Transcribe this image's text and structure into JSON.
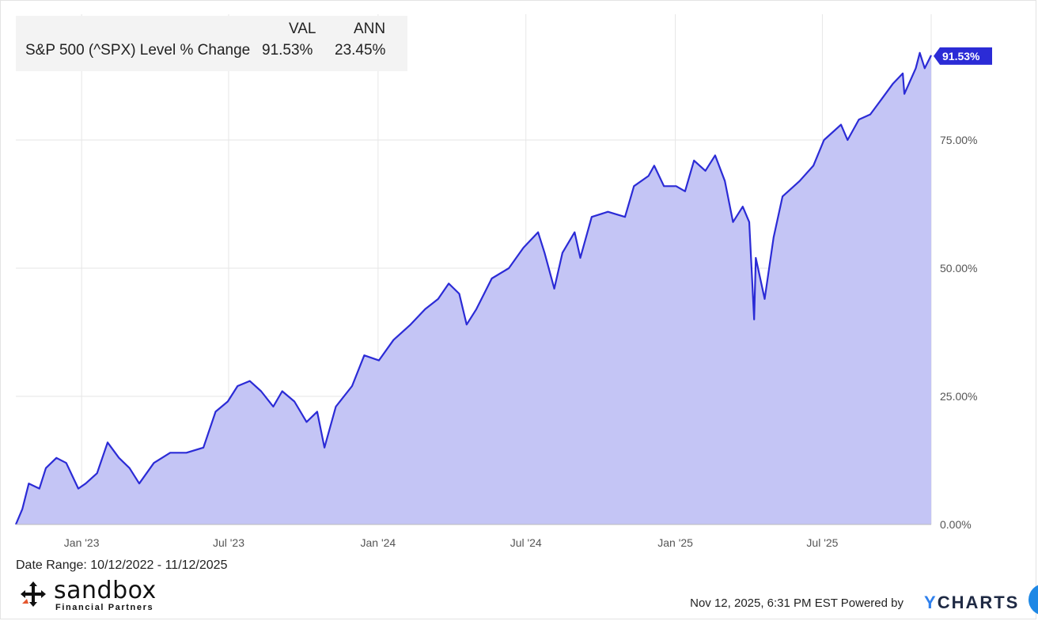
{
  "legend": {
    "col_val": "VAL",
    "col_ann": "ANN",
    "series_label": "S&P 500 (^SPX) Level % Change",
    "val": "91.53%",
    "ann": "23.45%"
  },
  "date_range": "Date Range: 10/12/2022 - 11/12/2025",
  "logo": {
    "word": "sandbox",
    "sub": "Financial Partners"
  },
  "footer": {
    "timestamp": "Nov 12, 2025, 6:31 PM EST Powered by",
    "brand_y": "Y",
    "brand_rest": "CHARTS"
  },
  "colors": {
    "line": "#2b2bd6",
    "fill": "#c4c5f5",
    "grid": "#e6e6e6",
    "badge": "#2b2bd6"
  },
  "chart_data": {
    "type": "area",
    "series": [
      {
        "name": "S&P 500 (^SPX) Level % Change"
      }
    ],
    "x_range": [
      "2022-10-12",
      "2025-11-12"
    ],
    "ylim": [
      0,
      100
    ],
    "y_ticks": [
      "0.00%",
      "25.00%",
      "50.00%",
      "75.00%"
    ],
    "x_ticks": [
      "Jan '23",
      "Jul '23",
      "Jan '24",
      "Jul '24",
      "Jan '25",
      "Jul '25"
    ],
    "last_value_label": "91.53%",
    "grid": true,
    "points": [
      [
        "2022-10-12",
        0
      ],
      [
        "2022-10-20",
        3
      ],
      [
        "2022-10-28",
        8
      ],
      [
        "2022-11-10",
        7
      ],
      [
        "2022-11-18",
        11
      ],
      [
        "2022-12-01",
        13
      ],
      [
        "2022-12-13",
        12
      ],
      [
        "2022-12-28",
        7
      ],
      [
        "2023-01-06",
        8
      ],
      [
        "2023-01-20",
        10
      ],
      [
        "2023-02-02",
        16
      ],
      [
        "2023-02-16",
        13
      ],
      [
        "2023-03-01",
        11
      ],
      [
        "2023-03-13",
        8
      ],
      [
        "2023-03-31",
        12
      ],
      [
        "2023-04-20",
        14
      ],
      [
        "2023-05-10",
        14
      ],
      [
        "2023-05-31",
        15
      ],
      [
        "2023-06-15",
        22
      ],
      [
        "2023-06-30",
        24
      ],
      [
        "2023-07-12",
        27
      ],
      [
        "2023-07-27",
        28
      ],
      [
        "2023-08-10",
        26
      ],
      [
        "2023-08-25",
        23
      ],
      [
        "2023-09-05",
        26
      ],
      [
        "2023-09-20",
        24
      ],
      [
        "2023-10-05",
        20
      ],
      [
        "2023-10-18",
        22
      ],
      [
        "2023-10-27",
        15
      ],
      [
        "2023-11-10",
        23
      ],
      [
        "2023-11-30",
        27
      ],
      [
        "2023-12-15",
        33
      ],
      [
        "2024-01-02",
        32
      ],
      [
        "2024-01-20",
        36
      ],
      [
        "2024-02-10",
        39
      ],
      [
        "2024-02-28",
        42
      ],
      [
        "2024-03-15",
        44
      ],
      [
        "2024-03-28",
        47
      ],
      [
        "2024-04-10",
        45
      ],
      [
        "2024-04-19",
        39
      ],
      [
        "2024-05-01",
        42
      ],
      [
        "2024-05-20",
        48
      ],
      [
        "2024-06-10",
        50
      ],
      [
        "2024-06-28",
        54
      ],
      [
        "2024-07-16",
        57
      ],
      [
        "2024-07-24",
        53
      ],
      [
        "2024-08-05",
        46
      ],
      [
        "2024-08-15",
        53
      ],
      [
        "2024-08-30",
        57
      ],
      [
        "2024-09-06",
        52
      ],
      [
        "2024-09-20",
        60
      ],
      [
        "2024-10-10",
        61
      ],
      [
        "2024-10-31",
        60
      ],
      [
        "2024-11-11",
        66
      ],
      [
        "2024-11-29",
        68
      ],
      [
        "2024-12-06",
        70
      ],
      [
        "2024-12-18",
        66
      ],
      [
        "2025-01-02",
        66
      ],
      [
        "2025-01-13",
        65
      ],
      [
        "2025-01-24",
        71
      ],
      [
        "2025-02-07",
        69
      ],
      [
        "2025-02-19",
        72
      ],
      [
        "2025-03-03",
        67
      ],
      [
        "2025-03-13",
        59
      ],
      [
        "2025-03-25",
        62
      ],
      [
        "2025-04-02",
        59
      ],
      [
        "2025-04-08",
        40
      ],
      [
        "2025-04-10",
        52
      ],
      [
        "2025-04-21",
        44
      ],
      [
        "2025-05-02",
        56
      ],
      [
        "2025-05-13",
        64
      ],
      [
        "2025-06-03",
        67
      ],
      [
        "2025-06-20",
        70
      ],
      [
        "2025-07-03",
        75
      ],
      [
        "2025-07-24",
        78
      ],
      [
        "2025-08-01",
        75
      ],
      [
        "2025-08-15",
        79
      ],
      [
        "2025-08-29",
        80
      ],
      [
        "2025-09-12",
        83
      ],
      [
        "2025-09-26",
        86
      ],
      [
        "2025-10-08",
        88
      ],
      [
        "2025-10-10",
        84
      ],
      [
        "2025-10-24",
        89
      ],
      [
        "2025-10-29",
        92
      ],
      [
        "2025-11-04",
        89
      ],
      [
        "2025-11-12",
        91.53
      ]
    ]
  }
}
